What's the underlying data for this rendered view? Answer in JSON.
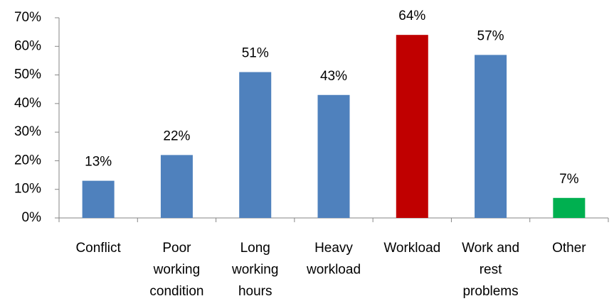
{
  "chart_data": {
    "type": "bar",
    "categories": [
      "Conflict",
      "Poor\nworking\ncondition",
      "Long\nworking\nhours",
      "Heavy\nworkload",
      "Workload",
      "Work and\nrest\nproblems",
      "Other"
    ],
    "values": [
      13,
      22,
      51,
      43,
      64,
      57,
      7
    ],
    "value_labels": [
      "13%",
      "22%",
      "51%",
      "43%",
      "64%",
      "57%",
      "7%"
    ],
    "colors": [
      "#4f81bd",
      "#4f81bd",
      "#4f81bd",
      "#4f81bd",
      "#c00000",
      "#4f81bd",
      "#00b050"
    ],
    "ylim": [
      0,
      70
    ],
    "yticks": [
      {
        "value": 0,
        "label": "0%"
      },
      {
        "value": 10,
        "label": "10%"
      },
      {
        "value": 20,
        "label": "20%"
      },
      {
        "value": 30,
        "label": "30%"
      },
      {
        "value": 40,
        "label": "40%"
      },
      {
        "value": 50,
        "label": "50%"
      },
      {
        "value": 60,
        "label": "60%"
      },
      {
        "value": 70,
        "label": "70%"
      }
    ],
    "grid": false
  }
}
